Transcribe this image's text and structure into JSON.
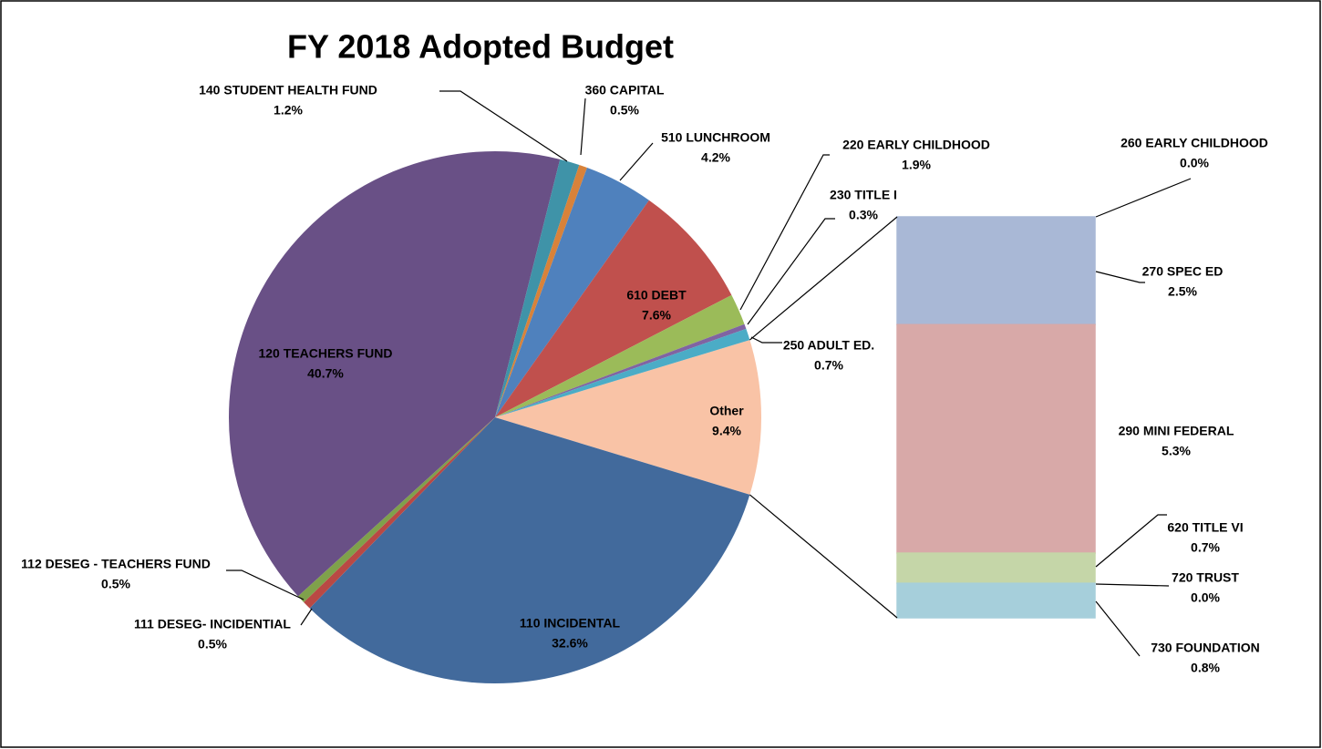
{
  "chart_data": {
    "type": "pie-of-bar",
    "title": "FY 2018 Adopted Budget",
    "categories": [
      "Other",
      "110  INCIDENTAL",
      "111 DESEG- INCIDENTIAL",
      "112 DESEG - TEACHERS FUND",
      "120 TEACHERS FUND",
      "140 STUDENT HEALTH FUND",
      "360 CAPITAL",
      "510 LUNCHROOM",
      "610 DEBT",
      "220 EARLY CHILDHOOD",
      "230 TITLE I",
      "250 ADULT ED."
    ],
    "values": [
      9.4,
      32.6,
      0.5,
      0.5,
      40.7,
      1.2,
      0.5,
      4.2,
      7.6,
      1.9,
      0.3,
      0.7
    ],
    "value_labels": [
      "9.4%",
      "32.6%",
      "0.5%",
      "0.5%",
      "40.7%",
      "1.2%",
      "0.5%",
      "4.2%",
      "7.6%",
      "1.9%",
      "0.3%",
      "0.7%"
    ],
    "colors": [
      "#f9c3a6",
      "#426a9c",
      "#b94944",
      "#7fa14b",
      "#695086",
      "#3f93a8",
      "#d8823a",
      "#4f81bd",
      "#c0504d",
      "#9bbb59",
      "#8064a2",
      "#4bacc6"
    ],
    "bar": {
      "categories": [
        "260 EARLY CHILDHOOD",
        "270 SPEC ED",
        "290  MINI FEDERAL",
        "620  TITLE VI",
        "720  TRUST",
        "730  FOUNDATION"
      ],
      "values": [
        0.0,
        2.5,
        5.3,
        0.7,
        0.0,
        0.8
      ],
      "value_labels": [
        "0.0%",
        "2.5%",
        "5.3%",
        "0.7%",
        "0.0%",
        "0.8%"
      ],
      "colors": [
        "#f79646",
        "#a9b8d6",
        "#d8a9a8",
        "#c5d6a8",
        "#b8a9c9",
        "#a6cfdb"
      ]
    }
  }
}
